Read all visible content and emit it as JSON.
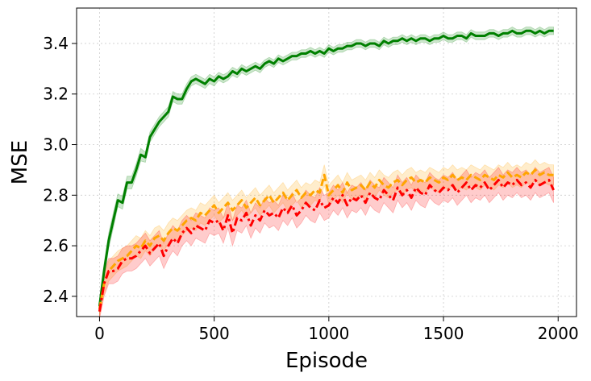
{
  "chart_data": {
    "type": "line",
    "xlabel": "Episode",
    "ylabel": "MSE",
    "xlim": [
      -100,
      2080
    ],
    "ylim": [
      2.32,
      3.54
    ],
    "x_ticks": [
      0,
      500,
      1000,
      1500,
      2000
    ],
    "x_tick_labels": [
      "0",
      "500",
      "1000",
      "1500",
      "2000"
    ],
    "y_ticks": [
      2.4,
      2.6,
      2.8,
      3.0,
      3.2,
      3.4
    ],
    "y_tick_labels": [
      "2.4",
      "2.6",
      "2.8",
      "3.0",
      "3.2",
      "3.4"
    ],
    "grid": true,
    "legend": "none",
    "series": [
      {
        "color": "#008000",
        "band_color": "#008000",
        "line_style": "solid",
        "x": [
          0,
          20,
          40,
          60,
          80,
          100,
          120,
          140,
          160,
          180,
          200,
          220,
          240,
          260,
          280,
          300,
          320,
          340,
          360,
          380,
          400,
          420,
          440,
          460,
          480,
          500,
          520,
          540,
          560,
          580,
          600,
          620,
          640,
          660,
          680,
          700,
          720,
          740,
          760,
          780,
          800,
          820,
          840,
          860,
          880,
          900,
          920,
          940,
          960,
          980,
          1000,
          1020,
          1040,
          1060,
          1080,
          1100,
          1120,
          1140,
          1160,
          1180,
          1200,
          1220,
          1240,
          1260,
          1280,
          1300,
          1320,
          1340,
          1360,
          1380,
          1400,
          1420,
          1440,
          1460,
          1480,
          1500,
          1520,
          1540,
          1560,
          1580,
          1600,
          1620,
          1640,
          1660,
          1680,
          1700,
          1720,
          1740,
          1760,
          1780,
          1800,
          1820,
          1840,
          1860,
          1880,
          1900,
          1920,
          1940,
          1960,
          1980
        ],
        "y": [
          2.36,
          2.5,
          2.62,
          2.7,
          2.78,
          2.77,
          2.85,
          2.85,
          2.9,
          2.96,
          2.95,
          3.03,
          3.06,
          3.09,
          3.11,
          3.13,
          3.19,
          3.18,
          3.18,
          3.22,
          3.25,
          3.26,
          3.25,
          3.24,
          3.26,
          3.25,
          3.27,
          3.26,
          3.27,
          3.29,
          3.28,
          3.3,
          3.29,
          3.3,
          3.31,
          3.3,
          3.32,
          3.33,
          3.32,
          3.34,
          3.33,
          3.34,
          3.35,
          3.35,
          3.36,
          3.36,
          3.37,
          3.36,
          3.37,
          3.36,
          3.38,
          3.37,
          3.38,
          3.38,
          3.39,
          3.39,
          3.4,
          3.4,
          3.39,
          3.4,
          3.4,
          3.39,
          3.41,
          3.4,
          3.41,
          3.41,
          3.42,
          3.41,
          3.42,
          3.41,
          3.42,
          3.42,
          3.41,
          3.42,
          3.42,
          3.43,
          3.42,
          3.42,
          3.43,
          3.43,
          3.42,
          3.44,
          3.43,
          3.43,
          3.43,
          3.44,
          3.44,
          3.43,
          3.44,
          3.44,
          3.45,
          3.44,
          3.44,
          3.45,
          3.45,
          3.44,
          3.45,
          3.44,
          3.45,
          3.45
        ],
        "band": [
          0.03,
          0.03,
          0.03,
          0.03,
          0.025,
          0.025,
          0.025,
          0.025,
          0.025,
          0.025,
          0.02,
          0.02,
          0.02,
          0.02,
          0.02,
          0.02,
          0.02,
          0.02,
          0.02,
          0.02,
          0.018,
          0.018,
          0.018,
          0.018,
          0.018,
          0.018,
          0.016,
          0.016,
          0.016,
          0.016,
          0.016,
          0.016,
          0.016,
          0.016,
          0.016,
          0.016,
          0.015,
          0.015,
          0.015,
          0.015,
          0.015,
          0.015,
          0.015,
          0.015,
          0.015,
          0.015,
          0.015,
          0.015,
          0.015,
          0.015,
          0.015,
          0.015,
          0.015,
          0.015,
          0.015,
          0.015,
          0.015,
          0.015,
          0.015,
          0.015,
          0.015,
          0.015,
          0.015,
          0.015,
          0.015,
          0.015,
          0.015,
          0.015,
          0.015,
          0.015,
          0.015,
          0.015,
          0.015,
          0.015,
          0.015,
          0.015,
          0.015,
          0.015,
          0.015,
          0.015,
          0.015,
          0.015,
          0.015,
          0.015,
          0.015,
          0.015,
          0.015,
          0.015,
          0.015,
          0.015,
          0.015,
          0.015,
          0.015,
          0.015,
          0.015,
          0.015,
          0.015,
          0.015,
          0.015,
          0.015
        ]
      },
      {
        "color": "#ffa500",
        "band_color": "#ffa500",
        "line_style": "dashed",
        "x": [
          0,
          20,
          40,
          60,
          80,
          100,
          120,
          140,
          160,
          180,
          200,
          220,
          240,
          260,
          280,
          300,
          320,
          340,
          360,
          380,
          400,
          420,
          440,
          460,
          480,
          500,
          520,
          540,
          560,
          580,
          600,
          620,
          640,
          660,
          680,
          700,
          720,
          740,
          760,
          780,
          800,
          820,
          840,
          860,
          880,
          900,
          920,
          940,
          960,
          980,
          1000,
          1020,
          1040,
          1060,
          1080,
          1100,
          1120,
          1140,
          1160,
          1180,
          1200,
          1220,
          1240,
          1260,
          1280,
          1300,
          1320,
          1340,
          1360,
          1380,
          1400,
          1420,
          1440,
          1460,
          1480,
          1500,
          1520,
          1540,
          1560,
          1580,
          1600,
          1620,
          1640,
          1660,
          1680,
          1700,
          1720,
          1740,
          1760,
          1780,
          1800,
          1820,
          1840,
          1860,
          1880,
          1900,
          1920,
          1940,
          1960,
          1980
        ],
        "y": [
          2.35,
          2.45,
          2.5,
          2.52,
          2.54,
          2.55,
          2.56,
          2.58,
          2.6,
          2.59,
          2.62,
          2.6,
          2.63,
          2.64,
          2.62,
          2.65,
          2.67,
          2.66,
          2.68,
          2.7,
          2.71,
          2.7,
          2.73,
          2.72,
          2.74,
          2.76,
          2.73,
          2.75,
          2.77,
          2.74,
          2.76,
          2.78,
          2.75,
          2.77,
          2.79,
          2.76,
          2.78,
          2.8,
          2.77,
          2.79,
          2.81,
          2.78,
          2.8,
          2.82,
          2.79,
          2.81,
          2.8,
          2.82,
          2.81,
          2.88,
          2.8,
          2.82,
          2.84,
          2.81,
          2.85,
          2.82,
          2.83,
          2.84,
          2.82,
          2.85,
          2.83,
          2.86,
          2.84,
          2.83,
          2.85,
          2.86,
          2.84,
          2.86,
          2.87,
          2.85,
          2.86,
          2.85,
          2.87,
          2.86,
          2.85,
          2.87,
          2.86,
          2.88,
          2.86,
          2.87,
          2.86,
          2.88,
          2.87,
          2.86,
          2.88,
          2.87,
          2.86,
          2.88,
          2.87,
          2.89,
          2.87,
          2.88,
          2.87,
          2.89,
          2.88,
          2.9,
          2.88,
          2.89,
          2.88,
          2.88
        ],
        "band": [
          0.03,
          0.04,
          0.04,
          0.04,
          0.04,
          0.04,
          0.04,
          0.04,
          0.04,
          0.04,
          0.04,
          0.04,
          0.04,
          0.04,
          0.04,
          0.04,
          0.04,
          0.04,
          0.04,
          0.04,
          0.04,
          0.04,
          0.04,
          0.04,
          0.04,
          0.04,
          0.04,
          0.04,
          0.04,
          0.04,
          0.04,
          0.04,
          0.04,
          0.04,
          0.04,
          0.04,
          0.04,
          0.04,
          0.04,
          0.04,
          0.04,
          0.04,
          0.04,
          0.04,
          0.04,
          0.04,
          0.04,
          0.04,
          0.04,
          0.04,
          0.04,
          0.04,
          0.04,
          0.04,
          0.04,
          0.04,
          0.04,
          0.04,
          0.04,
          0.04,
          0.04,
          0.04,
          0.04,
          0.04,
          0.04,
          0.04,
          0.04,
          0.04,
          0.04,
          0.04,
          0.04,
          0.04,
          0.04,
          0.04,
          0.04,
          0.04,
          0.04,
          0.04,
          0.04,
          0.04,
          0.04,
          0.04,
          0.04,
          0.04,
          0.04,
          0.04,
          0.04,
          0.04,
          0.04,
          0.04,
          0.04,
          0.04,
          0.04,
          0.04,
          0.04,
          0.04,
          0.04,
          0.04,
          0.04,
          0.04
        ]
      },
      {
        "color": "#ff0000",
        "band_color": "#ff0000",
        "line_style": "dashdot",
        "x": [
          0,
          20,
          40,
          60,
          80,
          100,
          120,
          140,
          160,
          180,
          200,
          220,
          240,
          260,
          280,
          300,
          320,
          340,
          360,
          380,
          400,
          420,
          440,
          460,
          480,
          500,
          520,
          540,
          560,
          580,
          600,
          620,
          640,
          660,
          680,
          700,
          720,
          740,
          760,
          780,
          800,
          820,
          840,
          860,
          880,
          900,
          920,
          940,
          960,
          980,
          1000,
          1020,
          1040,
          1060,
          1080,
          1100,
          1120,
          1140,
          1160,
          1180,
          1200,
          1220,
          1240,
          1260,
          1280,
          1300,
          1320,
          1340,
          1360,
          1380,
          1400,
          1420,
          1440,
          1460,
          1480,
          1500,
          1520,
          1540,
          1560,
          1580,
          1600,
          1620,
          1640,
          1660,
          1680,
          1700,
          1720,
          1740,
          1760,
          1780,
          1800,
          1820,
          1840,
          1860,
          1880,
          1900,
          1920,
          1940,
          1960,
          1980
        ],
        "y": [
          2.34,
          2.45,
          2.5,
          2.5,
          2.51,
          2.54,
          2.55,
          2.55,
          2.56,
          2.58,
          2.6,
          2.57,
          2.59,
          2.61,
          2.56,
          2.6,
          2.63,
          2.61,
          2.65,
          2.67,
          2.65,
          2.68,
          2.67,
          2.66,
          2.7,
          2.69,
          2.7,
          2.66,
          2.72,
          2.65,
          2.71,
          2.7,
          2.73,
          2.68,
          2.72,
          2.7,
          2.74,
          2.72,
          2.73,
          2.71,
          2.75,
          2.73,
          2.76,
          2.72,
          2.74,
          2.77,
          2.75,
          2.74,
          2.78,
          2.75,
          2.76,
          2.79,
          2.77,
          2.8,
          2.76,
          2.79,
          2.78,
          2.8,
          2.77,
          2.81,
          2.79,
          2.78,
          2.82,
          2.8,
          2.78,
          2.83,
          2.8,
          2.82,
          2.79,
          2.83,
          2.81,
          2.8,
          2.84,
          2.82,
          2.81,
          2.83,
          2.82,
          2.84,
          2.81,
          2.83,
          2.85,
          2.82,
          2.84,
          2.83,
          2.85,
          2.82,
          2.84,
          2.86,
          2.83,
          2.85,
          2.84,
          2.86,
          2.84,
          2.85,
          2.83,
          2.86,
          2.84,
          2.85,
          2.86,
          2.82
        ],
        "band": [
          0.03,
          0.05,
          0.05,
          0.05,
          0.05,
          0.05,
          0.05,
          0.05,
          0.05,
          0.05,
          0.05,
          0.05,
          0.05,
          0.05,
          0.05,
          0.05,
          0.05,
          0.05,
          0.05,
          0.05,
          0.05,
          0.05,
          0.05,
          0.05,
          0.05,
          0.05,
          0.05,
          0.05,
          0.05,
          0.05,
          0.05,
          0.05,
          0.05,
          0.05,
          0.05,
          0.05,
          0.05,
          0.05,
          0.05,
          0.05,
          0.05,
          0.05,
          0.05,
          0.05,
          0.05,
          0.05,
          0.05,
          0.05,
          0.05,
          0.05,
          0.05,
          0.05,
          0.05,
          0.05,
          0.05,
          0.05,
          0.05,
          0.05,
          0.05,
          0.05,
          0.05,
          0.05,
          0.05,
          0.05,
          0.05,
          0.05,
          0.05,
          0.05,
          0.05,
          0.05,
          0.05,
          0.05,
          0.05,
          0.05,
          0.05,
          0.05,
          0.05,
          0.05,
          0.05,
          0.05,
          0.05,
          0.05,
          0.05,
          0.05,
          0.05,
          0.05,
          0.05,
          0.05,
          0.05,
          0.05,
          0.05,
          0.05,
          0.05,
          0.05,
          0.05,
          0.05,
          0.05,
          0.05,
          0.05,
          0.05
        ]
      }
    ]
  }
}
